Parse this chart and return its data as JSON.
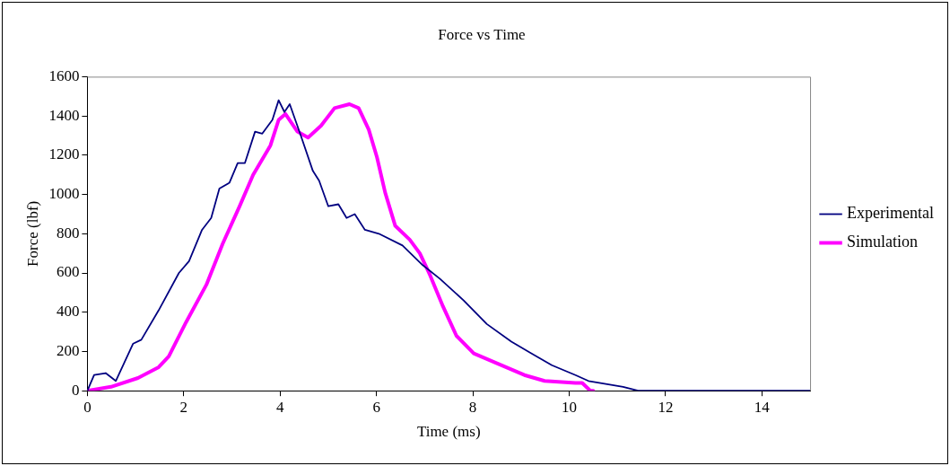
{
  "chart_data": {
    "type": "line",
    "title": "Force vs Time",
    "xlabel": "Time (ms)",
    "ylabel": "Force (lbf)",
    "xlim": [
      0,
      15
    ],
    "xticks": [
      0,
      2,
      4,
      6,
      8,
      10,
      12,
      14
    ],
    "ylim": [
      0,
      1600
    ],
    "yticks": [
      0,
      200,
      400,
      600,
      800,
      1000,
      1200,
      1400,
      1600
    ],
    "grid": false,
    "legend": "right",
    "marker": "none",
    "line_style": "solid",
    "series": [
      {
        "name": "Experimental",
        "color": "#000080",
        "x": [
          0,
          0.14,
          0.38,
          0.59,
          0.95,
          1.12,
          1.48,
          1.9,
          2.11,
          2.38,
          2.57,
          2.74,
          2.95,
          3.12,
          3.27,
          3.48,
          3.63,
          3.84,
          3.97,
          4.09,
          4.2,
          4.43,
          4.68,
          4.81,
          5.0,
          5.21,
          5.38,
          5.55,
          5.76,
          6.05,
          6.54,
          6.96,
          7.32,
          7.81,
          8.29,
          8.8,
          9.22,
          9.64,
          10.13,
          10.4,
          11.12,
          11.43,
          15
        ],
        "values": [
          0,
          80,
          90,
          50,
          240,
          260,
          410,
          600,
          660,
          820,
          880,
          1030,
          1060,
          1160,
          1160,
          1320,
          1310,
          1380,
          1480,
          1420,
          1460,
          1300,
          1120,
          1070,
          940,
          950,
          880,
          900,
          820,
          800,
          740,
          640,
          570,
          460,
          340,
          250,
          190,
          130,
          80,
          50,
          20,
          0,
          0
        ]
      },
      {
        "name": "Simulation",
        "color": "#ff00ff",
        "x": [
          0,
          0.49,
          1.05,
          1.48,
          1.69,
          2.05,
          2.47,
          2.81,
          3.16,
          3.44,
          3.8,
          3.97,
          4.11,
          4.36,
          4.58,
          4.85,
          5.13,
          5.44,
          5.63,
          5.84,
          6.01,
          6.18,
          6.39,
          6.69,
          6.9,
          7.11,
          7.38,
          7.66,
          8.02,
          8.5,
          9.07,
          9.49,
          10.13,
          10.27,
          10.44,
          10.5
        ],
        "values": [
          0,
          20,
          65,
          120,
          175,
          350,
          540,
          750,
          940,
          1100,
          1250,
          1380,
          1410,
          1320,
          1290,
          1350,
          1440,
          1460,
          1440,
          1330,
          1190,
          1010,
          840,
          770,
          700,
          590,
          430,
          280,
          190,
          140,
          80,
          50,
          40,
          40,
          0,
          0
        ]
      }
    ]
  }
}
